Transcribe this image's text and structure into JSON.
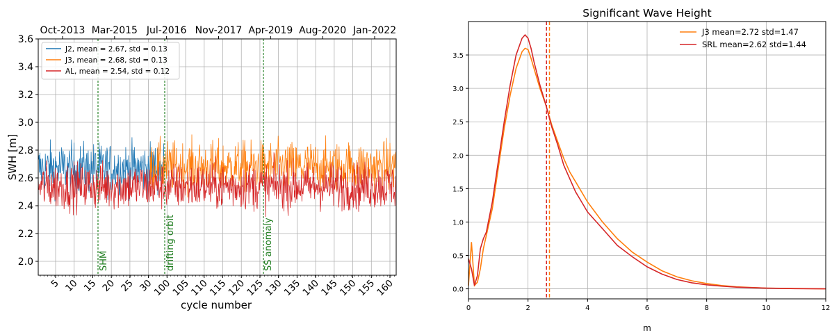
{
  "chart_data": [
    {
      "type": "line",
      "title": "",
      "xlabel": "cycle number",
      "ylabel": "SWH [m]",
      "ylim": [
        1.9,
        3.6
      ],
      "yticks": [
        2.0,
        2.2,
        2.4,
        2.6,
        2.8,
        3.0,
        3.2,
        3.4,
        3.6
      ],
      "ytick_labels": [
        "2.0",
        "2.2",
        "2.4",
        "2.6",
        "2.8",
        "3.0",
        "3.2",
        "3.4",
        "3.6"
      ],
      "xtick_labels": [
        "5",
        "10",
        "15",
        "20",
        "25",
        "30",
        "100",
        "105",
        "110",
        "115",
        "120",
        "125",
        "130",
        "135",
        "140",
        "145",
        "150",
        "155",
        "160"
      ],
      "top_axis_labels": [
        "Oct-2013",
        "Mar-2015",
        "Jul-2016",
        "Nov-2017",
        "Apr-2019",
        "Aug-2020",
        "Jan-2022"
      ],
      "grid": true,
      "legend_position": "top-left",
      "series": [
        {
          "name": "J2, mean = 2.67, std = 0.13",
          "color": "#1f77b4",
          "mean": 2.67,
          "std": 0.13
        },
        {
          "name": "J3, mean = 2.68, std = 0.13",
          "color": "#ff7f0e",
          "mean": 2.68,
          "std": 0.13
        },
        {
          "name": "AL, mean = 2.54, std = 0.12",
          "color": "#d62728",
          "mean": 2.54,
          "std": 0.12
        }
      ],
      "annotations": [
        {
          "label": "SHM",
          "position": "cycle 17"
        },
        {
          "label": "drifting orbit",
          "position": "cycle 99"
        },
        {
          "label": "SS anomaly",
          "position": "cycle 126"
        }
      ]
    },
    {
      "type": "line",
      "title": "Significant Wave Height",
      "xlabel": "m",
      "ylabel": "",
      "xlim": [
        0,
        12
      ],
      "ylim": [
        -0.15,
        4.0
      ],
      "xticks": [
        0,
        2,
        4,
        6,
        8,
        10,
        12
      ],
      "yticks": [
        0.0,
        0.5,
        1.0,
        1.5,
        2.0,
        2.5,
        3.0,
        3.5
      ],
      "ytick_labels": [
        "0.0",
        "0.5",
        "1.0",
        "1.5",
        "2.0",
        "2.5",
        "3.0",
        "3.5"
      ],
      "grid": true,
      "legend_position": "top-right",
      "x": [
        0,
        0.1,
        0.2,
        0.3,
        0.4,
        0.5,
        0.6,
        0.8,
        1.0,
        1.2,
        1.4,
        1.6,
        1.8,
        1.9,
        2.0,
        2.1,
        2.2,
        2.4,
        2.6,
        2.8,
        3.0,
        3.2,
        3.4,
        3.6,
        3.8,
        4.0,
        4.5,
        5.0,
        5.5,
        6.0,
        6.5,
        7.0,
        7.5,
        8.0,
        8.5,
        9.0,
        10.0,
        11.0,
        12.0
      ],
      "series": [
        {
          "name": "J3  mean=2.72 std=1.47",
          "color": "#ff7f0e",
          "vline": 2.72,
          "values": [
            0.05,
            0.7,
            0.05,
            0.1,
            0.3,
            0.6,
            0.8,
            1.2,
            1.8,
            2.4,
            2.9,
            3.3,
            3.55,
            3.6,
            3.58,
            3.45,
            3.3,
            3.0,
            2.75,
            2.45,
            2.2,
            1.95,
            1.75,
            1.6,
            1.45,
            1.3,
            1.0,
            0.75,
            0.55,
            0.4,
            0.27,
            0.18,
            0.12,
            0.08,
            0.05,
            0.03,
            0.01,
            0.005,
            0.0
          ]
        },
        {
          "name": "SRL mean=2.62 std=1.44",
          "color": "#d62728",
          "vline": 2.62,
          "values": [
            0.45,
            0.3,
            0.05,
            0.2,
            0.6,
            0.75,
            0.85,
            1.3,
            1.9,
            2.5,
            3.05,
            3.5,
            3.75,
            3.8,
            3.75,
            3.6,
            3.4,
            3.05,
            2.75,
            2.42,
            2.15,
            1.85,
            1.65,
            1.45,
            1.3,
            1.15,
            0.9,
            0.65,
            0.48,
            0.33,
            0.22,
            0.14,
            0.09,
            0.06,
            0.04,
            0.025,
            0.01,
            0.003,
            0.0
          ]
        }
      ]
    }
  ]
}
